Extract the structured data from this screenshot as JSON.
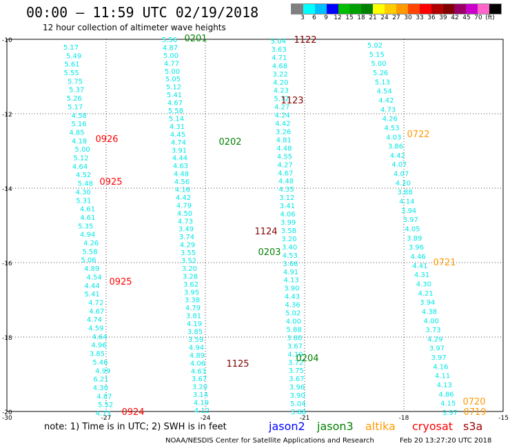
{
  "header": {
    "title": "00:00 – 11:59 UTC 02/19/2018",
    "subtitle": "12 hour collection of altimeter wave heights"
  },
  "colorbar": {
    "colors": [
      "#808080",
      "#00ffff",
      "#00bfff",
      "#0000ff",
      "#00bf00",
      "#00a000",
      "#008000",
      "#ffff00",
      "#ffcc00",
      "#ff9900",
      "#ff4500",
      "#ff0000",
      "#b00000",
      "#800000",
      "#990066",
      "#cc00cc",
      "#ff66cc",
      "#000000"
    ],
    "labels": [
      "3",
      "6",
      "9",
      "12",
      "15",
      "18",
      "21",
      "24",
      "27",
      "30",
      "33",
      "36",
      "39",
      "42",
      "45",
      "70",
      "(ft)"
    ]
  },
  "axes": {
    "lat_labels": [
      "-10",
      "-12",
      "-14",
      "-16",
      "-18",
      "-20"
    ],
    "lon_labels": [
      "-30",
      "-27",
      "-24",
      "-21",
      "-18",
      "-15"
    ]
  },
  "tracks": [
    {
      "id": "t1",
      "values": [
        "5.17",
        "5.49",
        "5.61",
        "5.55",
        "5.75",
        "5.37",
        "5.26",
        "5.17",
        "4.58",
        "5.16",
        "4.85",
        "4.18",
        "5.00",
        "5.12",
        "4.64",
        "4.52",
        "5.48",
        "4.30",
        "5.31",
        "4.61",
        "4.61",
        "5.35",
        "4.94",
        "4.26",
        "5.58",
        "5.06",
        "4.89",
        "4.54",
        "4.44",
        "5.41",
        "4.72",
        "4.67",
        "4.74",
        "4.59",
        "4.64",
        "4.96",
        "3.85",
        "5.46",
        "4.99",
        "6.21",
        "4.30",
        "4.87",
        "5.52",
        "4.73"
      ]
    },
    {
      "id": "t2",
      "values": [
        "5.56",
        "4.87",
        "5.00",
        "4.77",
        "5.00",
        "5.05",
        "5.12",
        "5.41",
        "4.67",
        "5.58",
        "5.14",
        "4.31",
        "4.45",
        "4.74",
        "3.91",
        "4.44",
        "4.63",
        "4.48",
        "4.56",
        "4.16",
        "4.42",
        "4.79",
        "4.50",
        "4.73",
        "3.49",
        "3.74",
        "4.29",
        "3.55",
        "3.52",
        "3.20",
        "3.28",
        "3.62",
        "3.95",
        "3.38",
        "4.79",
        "3.81",
        "4.19",
        "3.85",
        "3.59",
        "4.94",
        "4.89",
        "4.06",
        "4.63",
        "3.67",
        "3.20",
        "3.14",
        "4.19",
        "4.12"
      ]
    },
    {
      "id": "t3",
      "values": [
        "5.04",
        "3.63",
        "4.71",
        "4.68",
        "3.22",
        "4.20",
        "4.23",
        "5.72",
        "4.27",
        "4.24",
        "4.42",
        "3.26",
        "4.81",
        "4.48",
        "4.55",
        "4.27",
        "4.67",
        "4.48",
        "4.35",
        "3.12",
        "3.41",
        "4.06",
        "3.99",
        "3.58",
        "3.20",
        "3.40",
        "4.53",
        "3.66",
        "4.91",
        "4.13",
        "3.90",
        "4.43",
        "4.36",
        "5.02",
        "4.00",
        "5.88",
        "3.80",
        "3.67",
        "4.19",
        "3.72",
        "3.75",
        "3.67",
        "3.96",
        "3.90",
        "5.04",
        "3.88"
      ]
    },
    {
      "id": "t4",
      "values": [
        "5.02",
        "5.15",
        "5.00",
        "5.26",
        "5.13",
        "4.54",
        "4.42",
        "4.73",
        "4.26",
        "4.53",
        "4.03",
        "3.86",
        "4.42",
        "4.07",
        "4.07",
        "4.20",
        "3.88",
        "4.14",
        "3.94",
        "3.97",
        "4.05",
        "3.89",
        "3.96",
        "4.46",
        "4.41",
        "4.31",
        "4.30",
        "4.21",
        "3.94",
        "4.38",
        "4.00",
        "3.73",
        "4.29",
        "3.97",
        "3.97",
        "4.16",
        "4.11",
        "4.13",
        "4.86",
        "4.15",
        "3.97"
      ]
    }
  ],
  "time_labels": [
    {
      "text": "0201",
      "mission": "jason3"
    },
    {
      "text": "1122",
      "mission": "cryosat"
    },
    {
      "text": "1123",
      "mission": "cryosat"
    },
    {
      "text": "0926",
      "mission": "s3a"
    },
    {
      "text": "0202",
      "mission": "jason3"
    },
    {
      "text": "0722",
      "mission": "altika"
    },
    {
      "text": "0925",
      "mission": "s3a"
    },
    {
      "text": "1124",
      "mission": "cryosat"
    },
    {
      "text": "0203",
      "mission": "jason3"
    },
    {
      "text": "0721",
      "mission": "altika"
    },
    {
      "text": "0925",
      "mission": "s3a"
    },
    {
      "text": "0204",
      "mission": "jason3"
    },
    {
      "text": "1125",
      "mission": "cryosat"
    },
    {
      "text": "0720",
      "mission": "altika"
    },
    {
      "text": "0924",
      "mission": "s3a"
    },
    {
      "text": "0719",
      "mission": "altika"
    }
  ],
  "colors": {
    "track_text": "#00e6e6",
    "jason2": "#0000ff",
    "jason3": "#008000",
    "altika": "#ff9900",
    "cryosat": "#ff0000",
    "s3a": "#990000",
    "label_s3a": "#ff0000",
    "label_cryosat": "#800000"
  },
  "footer": {
    "note": "note: 1) Time is in UTC; 2) SWH is in feet",
    "missions": [
      "jason2",
      "jason3",
      "altika",
      "cryosat",
      "s3a"
    ],
    "credit": "NOAA/NESDIS Center for Satellite Applications and Research",
    "stamp": "Feb 20 13:27:20 UTC 2018"
  }
}
